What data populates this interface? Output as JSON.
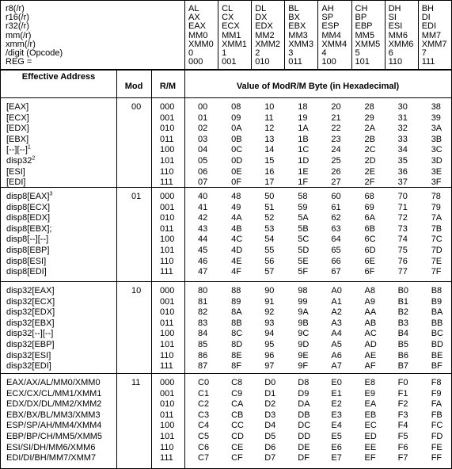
{
  "header": {
    "reg_labels": [
      "r8(/r)",
      "r16(/r)",
      "r32(/r)",
      "mm(/r)",
      "xmm(/r)",
      "/digit (Opcode)",
      "REG ="
    ],
    "columns": [
      [
        "AL",
        "AX",
        "EAX",
        "MM0",
        "XMM0",
        "0",
        "000"
      ],
      [
        "CL",
        "CX",
        "ECX",
        "MM1",
        "XMM1",
        "1",
        "001"
      ],
      [
        "DL",
        "DX",
        "EDX",
        "MM2",
        "XMM2",
        "2",
        "010"
      ],
      [
        "BL",
        "BX",
        "EBX",
        "MM3",
        "XMM3",
        "3",
        "011"
      ],
      [
        "AH",
        "SP",
        "ESP",
        "MM4",
        "XMM4",
        "4",
        "100"
      ],
      [
        "CH",
        "BP",
        "EBP",
        "MM5",
        "XMM5",
        "5",
        "101"
      ],
      [
        "DH",
        "SI",
        "ESI",
        "MM6",
        "XMM6",
        "6",
        "110"
      ],
      [
        "BH",
        "DI",
        "EDI",
        "MM7",
        "XMM7",
        "7",
        "111"
      ]
    ]
  },
  "subheader": {
    "effective_address": "Effective Address",
    "mod": "Mod",
    "rm": "R/M",
    "value": "Value of ModR/M Byte (in Hexadecimal)"
  },
  "groups": [
    {
      "mod": "00",
      "rows": [
        {
          "address": "[EAX]",
          "rm": "000",
          "values": [
            "00",
            "08",
            "10",
            "18",
            "20",
            "28",
            "30",
            "38"
          ]
        },
        {
          "address": "[ECX]",
          "rm": "001",
          "values": [
            "01",
            "09",
            "11",
            "19",
            "21",
            "29",
            "31",
            "39"
          ]
        },
        {
          "address": "[EDX]",
          "rm": "010",
          "values": [
            "02",
            "0A",
            "12",
            "1A",
            "22",
            "2A",
            "32",
            "3A"
          ]
        },
        {
          "address": "[EBX]",
          "rm": "011",
          "values": [
            "03",
            "0B",
            "13",
            "1B",
            "23",
            "2B",
            "33",
            "3B"
          ]
        },
        {
          "address": "[--][--]",
          "note": "1",
          "rm": "100",
          "values": [
            "04",
            "0C",
            "14",
            "1C",
            "24",
            "2C",
            "34",
            "3C"
          ]
        },
        {
          "address": "disp32",
          "note": "2",
          "rm": "101",
          "values": [
            "05",
            "0D",
            "15",
            "1D",
            "25",
            "2D",
            "35",
            "3D"
          ]
        },
        {
          "address": "[ESI]",
          "rm": "110",
          "values": [
            "06",
            "0E",
            "16",
            "1E",
            "26",
            "2E",
            "36",
            "3E"
          ]
        },
        {
          "address": "[EDI]",
          "rm": "111",
          "values": [
            "07",
            "0F",
            "17",
            "1F",
            "27",
            "2F",
            "37",
            "3F"
          ]
        }
      ]
    },
    {
      "mod": "01",
      "rows": [
        {
          "address": "disp8[EAX]",
          "note": "3",
          "rm": "000",
          "values": [
            "40",
            "48",
            "50",
            "58",
            "60",
            "68",
            "70",
            "78"
          ]
        },
        {
          "address": "disp8[ECX]",
          "rm": "001",
          "values": [
            "41",
            "49",
            "51",
            "59",
            "61",
            "69",
            "71",
            "79"
          ]
        },
        {
          "address": "disp8[EDX]",
          "rm": "010",
          "values": [
            "42",
            "4A",
            "52",
            "5A",
            "62",
            "6A",
            "72",
            "7A"
          ]
        },
        {
          "address": "disp8[EBX];",
          "rm": "011",
          "values": [
            "43",
            "4B",
            "53",
            "5B",
            "63",
            "6B",
            "73",
            "7B"
          ]
        },
        {
          "address": "disp8[--][--]",
          "rm": "100",
          "values": [
            "44",
            "4C",
            "54",
            "5C",
            "64",
            "6C",
            "74",
            "7C"
          ]
        },
        {
          "address": "disp8[EBP]",
          "rm": "101",
          "values": [
            "45",
            "4D",
            "55",
            "5D",
            "65",
            "6D",
            "75",
            "7D"
          ]
        },
        {
          "address": "disp8[ESI]",
          "rm": "110",
          "values": [
            "46",
            "4E",
            "56",
            "5E",
            "66",
            "6E",
            "76",
            "7E"
          ]
        },
        {
          "address": "disp8[EDI]",
          "rm": "111",
          "values": [
            "47",
            "4F",
            "57",
            "5F",
            "67",
            "6F",
            "77",
            "7F"
          ]
        }
      ]
    },
    {
      "mod": "10",
      "rows": [
        {
          "address": "disp32[EAX]",
          "rm": "000",
          "values": [
            "80",
            "88",
            "90",
            "98",
            "A0",
            "A8",
            "B0",
            "B8"
          ]
        },
        {
          "address": "disp32[ECX]",
          "rm": "001",
          "values": [
            "81",
            "89",
            "91",
            "99",
            "A1",
            "A9",
            "B1",
            "B9"
          ]
        },
        {
          "address": "disp32[EDX]",
          "rm": "010",
          "values": [
            "82",
            "8A",
            "92",
            "9A",
            "A2",
            "AA",
            "B2",
            "BA"
          ]
        },
        {
          "address": "disp32[EBX]",
          "rm": "011",
          "values": [
            "83",
            "8B",
            "93",
            "9B",
            "A3",
            "AB",
            "B3",
            "BB"
          ]
        },
        {
          "address": "disp32[--][--]",
          "rm": "100",
          "values": [
            "84",
            "8C",
            "94",
            "9C",
            "A4",
            "AC",
            "B4",
            "BC"
          ]
        },
        {
          "address": "disp32[EBP]",
          "rm": "101",
          "values": [
            "85",
            "8D",
            "95",
            "9D",
            "A5",
            "AD",
            "B5",
            "BD"
          ]
        },
        {
          "address": "disp32[ESI]",
          "rm": "110",
          "values": [
            "86",
            "8E",
            "96",
            "9E",
            "A6",
            "AE",
            "B6",
            "BE"
          ]
        },
        {
          "address": "disp32[EDI]",
          "rm": "111",
          "values": [
            "87",
            "8F",
            "97",
            "9F",
            "A7",
            "AF",
            "B7",
            "BF"
          ]
        }
      ]
    },
    {
      "mod": "11",
      "rows": [
        {
          "address": "EAX/AX/AL/MM0/XMM0",
          "rm": "000",
          "values": [
            "C0",
            "C8",
            "D0",
            "D8",
            "E0",
            "E8",
            "F0",
            "F8"
          ]
        },
        {
          "address": "ECX/CX/CL/MM1/XMM1",
          "rm": "001",
          "values": [
            "C1",
            "C9",
            "D1",
            "D9",
            "E1",
            "E9",
            "F1",
            "F9"
          ]
        },
        {
          "address": "EDX/DX/DL/MM2/XMM2",
          "rm": "010",
          "values": [
            "C2",
            "CA",
            "D2",
            "DA",
            "E2",
            "EA",
            "F2",
            "FA"
          ]
        },
        {
          "address": "EBX/BX/BL/MM3/XMM3",
          "rm": "011",
          "values": [
            "C3",
            "CB",
            "D3",
            "DB",
            "E3",
            "EB",
            "F3",
            "FB"
          ]
        },
        {
          "address": "ESP/SP/AH/MM4/XMM4",
          "rm": "100",
          "values": [
            "C4",
            "CC",
            "D4",
            "DC",
            "E4",
            "EC",
            "F4",
            "FC"
          ]
        },
        {
          "address": "EBP/BP/CH/MM5/XMM5",
          "rm": "101",
          "values": [
            "C5",
            "CD",
            "D5",
            "DD",
            "E5",
            "ED",
            "F5",
            "FD"
          ]
        },
        {
          "address": "ESI/SI/DH/MM6/XMM6",
          "rm": "110",
          "values": [
            "C6",
            "CE",
            "D6",
            "DE",
            "E6",
            "EE",
            "F6",
            "FE"
          ]
        },
        {
          "address": "EDI/DI/BH/MM7/XMM7",
          "rm": "111",
          "values": [
            "C7",
            "CF",
            "D7",
            "DF",
            "E7",
            "EF",
            "F7",
            "FF"
          ]
        }
      ]
    }
  ]
}
